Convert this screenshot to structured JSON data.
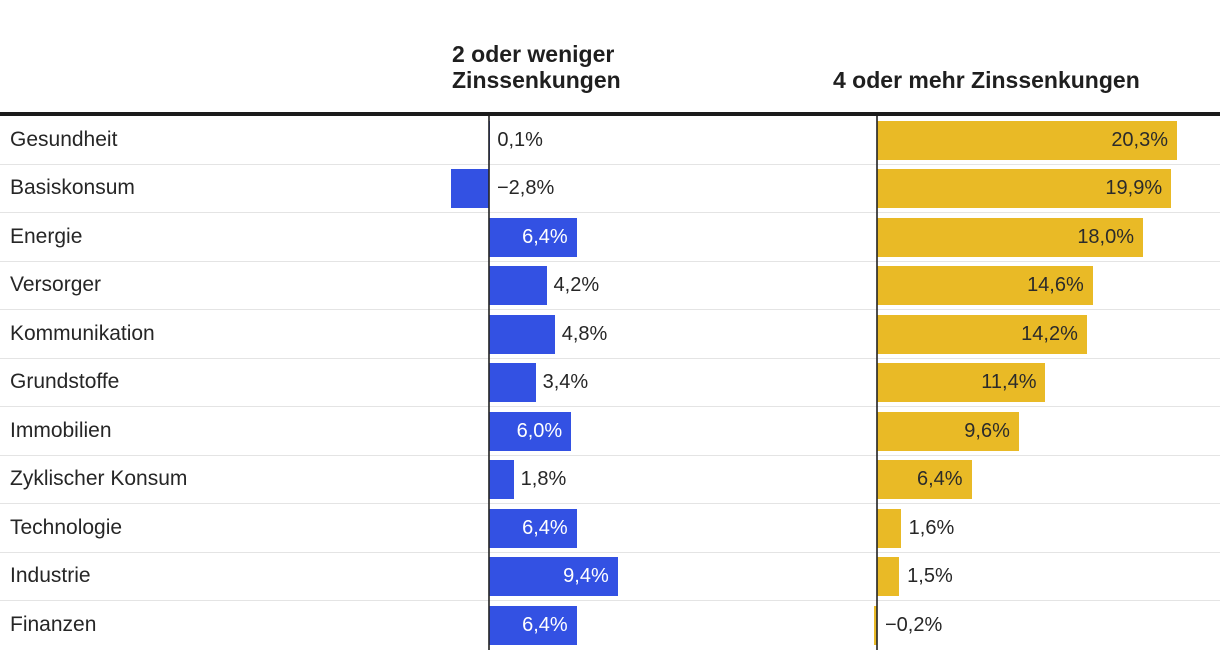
{
  "headers": {
    "left": "2 oder weniger\nZinssenkungen",
    "right": "4 oder mehr Zinssenkungen"
  },
  "chart_data": {
    "type": "bar",
    "orientation": "horizontal",
    "title": "",
    "unit": "%",
    "categories": [
      "Gesundheit",
      "Basiskonsum",
      "Energie",
      "Versorger",
      "Kommunikation",
      "Grundstoffe",
      "Immobilien",
      "Zyklischer Konsum",
      "Technologie",
      "Industrie",
      "Finanzen"
    ],
    "series": [
      {
        "name": "2 oder weniger Zinssenkungen",
        "color": "#3351e3",
        "label_color_inside": "#ffffff",
        "values": [
          0.1,
          -2.8,
          6.4,
          4.2,
          4.8,
          3.4,
          6.0,
          1.8,
          6.4,
          9.4,
          6.4
        ],
        "labels": [
          "0,1%",
          "−2,8%",
          "6,4%",
          "4,2%",
          "4,8%",
          "3,4%",
          "6,0%",
          "1,8%",
          "6,4%",
          "9,4%",
          "6,4%"
        ]
      },
      {
        "name": "4 oder mehr Zinssenkungen",
        "color": "#e9ba26",
        "label_color_inside": "#2b2b2b",
        "values": [
          20.3,
          19.9,
          18.0,
          14.6,
          14.2,
          11.4,
          9.6,
          6.4,
          1.6,
          1.5,
          -0.2
        ],
        "labels": [
          "20,3%",
          "19,9%",
          "18,0%",
          "14,6%",
          "14,2%",
          "11,4%",
          "9,6%",
          "6,4%",
          "1,6%",
          "1,5%",
          "−0,2%"
        ]
      }
    ],
    "axis_range_left_panel": [
      -3,
      10
    ],
    "axis_range_right_panel": [
      -1,
      21
    ],
    "grid": "light horizontal row separators, dark vertical zero axes",
    "legend_position": "column headers above panels",
    "text_color": "#262626"
  }
}
